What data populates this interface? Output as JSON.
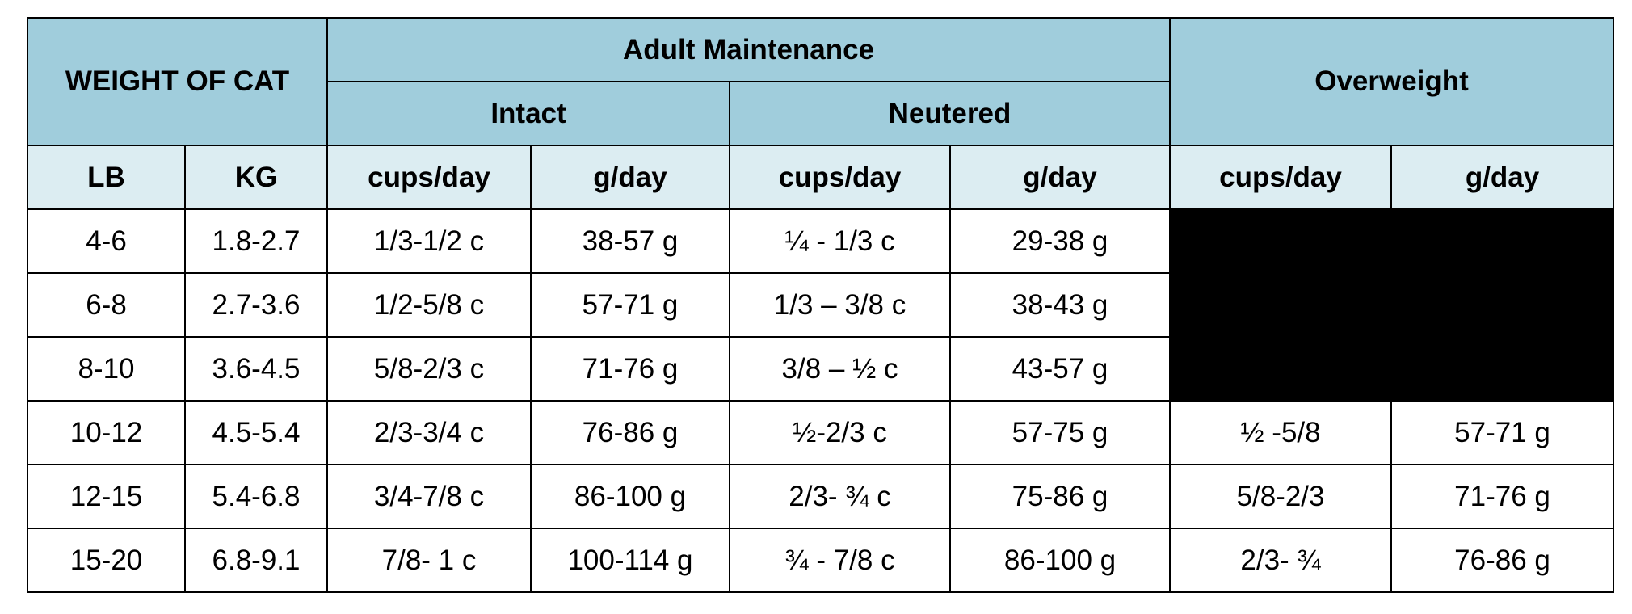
{
  "table": {
    "group_headers": {
      "weight": "WEIGHT OF CAT",
      "adult_maintenance": "Adult Maintenance",
      "intact": "Intact",
      "neutered": "Neutered",
      "overweight": "Overweight"
    },
    "sub_headers": [
      "LB",
      "KG",
      "cups/day",
      "g/day",
      "cups/day",
      "g/day",
      "cups/day",
      "g/day"
    ],
    "rows": [
      {
        "lb": "4-6",
        "kg": "1.8-2.7",
        "intact_cups": "1/3-1/2 c",
        "intact_g": "38-57 g",
        "neutered_cups": "¼ - 1/3 c",
        "neutered_g": "29-38 g",
        "overweight_cups": "",
        "overweight_g": ""
      },
      {
        "lb": "6-8",
        "kg": "2.7-3.6",
        "intact_cups": "1/2-5/8 c",
        "intact_g": "57-71 g",
        "neutered_cups": "1/3 – 3/8 c",
        "neutered_g": "38-43 g",
        "overweight_cups": "",
        "overweight_g": ""
      },
      {
        "lb": "8-10",
        "kg": "3.6-4.5",
        "intact_cups": "5/8-2/3 c",
        "intact_g": "71-76 g",
        "neutered_cups": "3/8 – ½ c",
        "neutered_g": "43-57 g",
        "overweight_cups": "",
        "overweight_g": ""
      },
      {
        "lb": "10-12",
        "kg": "4.5-5.4",
        "intact_cups": "2/3-3/4 c",
        "intact_g": "76-86 g",
        "neutered_cups": "½-2/3 c",
        "neutered_g": "57-75 g",
        "overweight_cups": "½ -5/8",
        "overweight_g": "57-71 g"
      },
      {
        "lb": "12-15",
        "kg": "5.4-6.8",
        "intact_cups": "3/4-7/8 c",
        "intact_g": "86-100 g",
        "neutered_cups": "2/3- ¾ c",
        "neutered_g": "75-86 g",
        "overweight_cups": "5/8-2/3",
        "overweight_g": "71-76 g"
      },
      {
        "lb": "15-20",
        "kg": "6.8-9.1",
        "intact_cups": "7/8- 1 c",
        "intact_g": "100-114 g",
        "neutered_cups": "¾ - 7/8 c",
        "neutered_g": "86-100 g",
        "overweight_cups": "2/3- ¾",
        "overweight_g": "76-86 g"
      }
    ],
    "colors": {
      "header_dark": "#a0cddc",
      "header_light": "#dcedf2",
      "blackout": "#000000"
    }
  }
}
